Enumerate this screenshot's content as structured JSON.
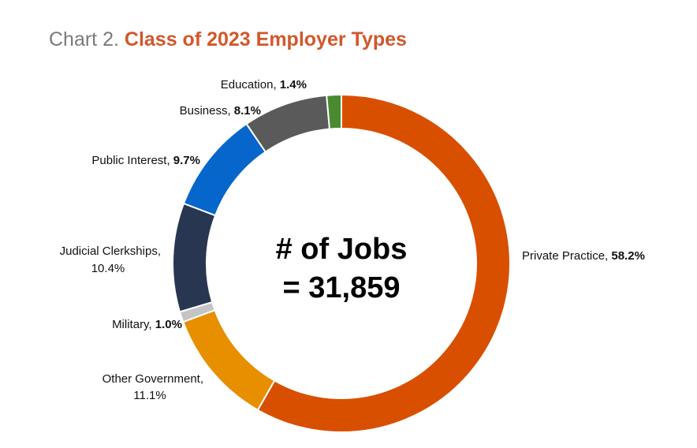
{
  "title": {
    "prefix": "Chart 2.",
    "main": "Class of 2023 Employer Types"
  },
  "chart_data": {
    "type": "pie",
    "variant": "donut",
    "center_text": [
      "# of Jobs",
      "= 31,859"
    ],
    "slices": [
      {
        "name": "Private Practice",
        "value": 58.2,
        "label": "Private Practice, ",
        "pct_label": "58.2%",
        "color": "#d94f00"
      },
      {
        "name": "Other Government",
        "value": 11.1,
        "label": "Other Government,",
        "pct_label": "11.1%",
        "color": "#e88f00"
      },
      {
        "name": "Military",
        "value": 1.0,
        "label": "Military, ",
        "pct_label": "1.0%",
        "color": "#c4c4c4"
      },
      {
        "name": "Judicial Clerkships",
        "value": 10.4,
        "label": "Judicial Clerkships,",
        "pct_label": "10.4%",
        "color": "#283651"
      },
      {
        "name": "Public Interest",
        "value": 9.7,
        "label": "Public Interest, ",
        "pct_label": "9.7%",
        "color": "#0666cc"
      },
      {
        "name": "Business",
        "value": 8.1,
        "label": "Business, ",
        "pct_label": "8.1%",
        "color": "#5a5a5a"
      },
      {
        "name": "Education",
        "value": 1.4,
        "label": "Education, ",
        "pct_label": "1.4%",
        "color": "#4a8a30"
      }
    ]
  }
}
